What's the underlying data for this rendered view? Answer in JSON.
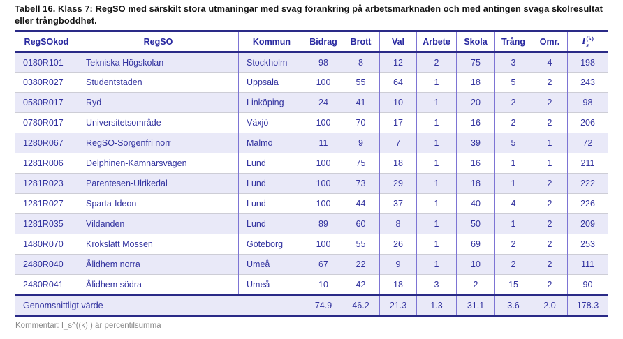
{
  "title": "Tabell 16. Klass 7: RegSO med särskilt stora utmaningar med svag förankring på arbetsmarknaden och med antingen svaga skolresultat eller trångboddhet.",
  "table": {
    "columns": [
      "RegSOkod",
      "RegSO",
      "Kommun",
      "Bidrag",
      "Brott",
      "Val",
      "Arbete",
      "Skola",
      "Trång",
      "Omr."
    ],
    "index_column": {
      "base": "I",
      "sup": "(k)",
      "sub": "s"
    },
    "rows": [
      {
        "cells": [
          "0180R101",
          "Tekniska Högskolan",
          "Stockholm",
          "98",
          "8",
          "12",
          "2",
          "75",
          "3",
          "4",
          "198"
        ]
      },
      {
        "cells": [
          "0380R027",
          "Studentstaden",
          "Uppsala",
          "100",
          "55",
          "64",
          "1",
          "18",
          "5",
          "2",
          "243"
        ]
      },
      {
        "cells": [
          "0580R017",
          "Ryd",
          "Linköping",
          "24",
          "41",
          "10",
          "1",
          "20",
          "2",
          "2",
          "98"
        ]
      },
      {
        "cells": [
          "0780R017",
          "Universitetsområde",
          "Växjö",
          "100",
          "70",
          "17",
          "1",
          "16",
          "2",
          "2",
          "206"
        ]
      },
      {
        "cells": [
          "1280R067",
          "RegSO-Sorgenfri norr",
          "Malmö",
          "11",
          "9",
          "7",
          "1",
          "39",
          "5",
          "1",
          "72"
        ]
      },
      {
        "cells": [
          "1281R006",
          "Delphinen-Kämnärsvägen",
          "Lund",
          "100",
          "75",
          "18",
          "1",
          "16",
          "1",
          "1",
          "211"
        ]
      },
      {
        "cells": [
          "1281R023",
          "Parentesen-Ulrikedal",
          "Lund",
          "100",
          "73",
          "29",
          "1",
          "18",
          "1",
          "2",
          "222"
        ]
      },
      {
        "cells": [
          "1281R027",
          "Sparta-Ideon",
          "Lund",
          "100",
          "44",
          "37",
          "1",
          "40",
          "4",
          "2",
          "226"
        ]
      },
      {
        "cells": [
          "1281R035",
          "Vildanden",
          "Lund",
          "89",
          "60",
          "8",
          "1",
          "50",
          "1",
          "2",
          "209"
        ]
      },
      {
        "cells": [
          "1480R070",
          "Krokslätt Mossen",
          "Göteborg",
          "100",
          "55",
          "26",
          "1",
          "69",
          "2",
          "2",
          "253"
        ]
      },
      {
        "cells": [
          "2480R040",
          "Ålidhem norra",
          "Umeå",
          "67",
          "22",
          "9",
          "1",
          "10",
          "2",
          "2",
          "111"
        ]
      },
      {
        "cells": [
          "2480R041",
          "Ålidhem södra",
          "Umeå",
          "10",
          "42",
          "18",
          "3",
          "2",
          "15",
          "2",
          "90"
        ]
      }
    ],
    "footer": {
      "label": "Genomsnittligt värde",
      "values": [
        "74.9",
        "46.2",
        "21.3",
        "1.3",
        "31.1",
        "3.6",
        "2.0",
        "178.3"
      ]
    }
  },
  "comment": "Kommentar: I_s^((k) ) är percentilsumma",
  "colors": {
    "table_text": "#32329f",
    "thick_border": "#2a2a87",
    "column_border": "#7d74d4",
    "row_separator": "#cdcdd6",
    "stripe_background": "#e9e9f8",
    "comment_text": "#8a8a8a",
    "title_text": "#141414"
  }
}
